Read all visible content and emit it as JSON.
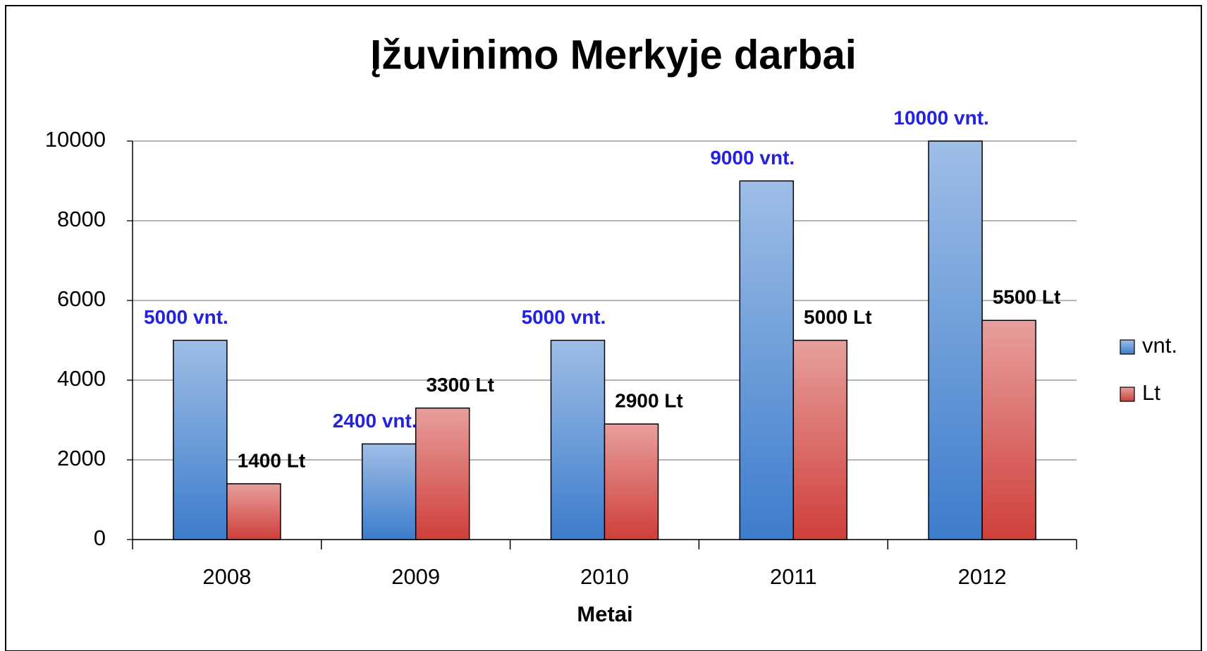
{
  "chart_data": {
    "type": "bar",
    "title": "Įžuvinimo Merkyje darbai",
    "x_label": "Metai",
    "categories": [
      "2008",
      "2009",
      "2010",
      "2011",
      "2012"
    ],
    "series": [
      {
        "name": "vnt.",
        "color": "#3d7ccc",
        "label_color": "#2222e0",
        "values": [
          5000,
          2400,
          5000,
          9000,
          10000
        ],
        "value_labels": [
          "5000 vnt.",
          "2400 vnt.",
          "5000 vnt.",
          "9000 vnt.",
          "10000 vnt."
        ]
      },
      {
        "name": "Lt",
        "color": "#cf3f3a",
        "label_color": "#000000",
        "values": [
          1400,
          3300,
          2900,
          5000,
          5500
        ],
        "value_labels": [
          "1400 Lt",
          "3300 Lt",
          "2900 Lt",
          "5000 Lt",
          "5500 Lt"
        ]
      }
    ],
    "ylim": [
      0,
      10000
    ],
    "yticks": [
      0,
      2000,
      4000,
      6000,
      8000,
      10000
    ],
    "grid": true,
    "legend": "right"
  }
}
